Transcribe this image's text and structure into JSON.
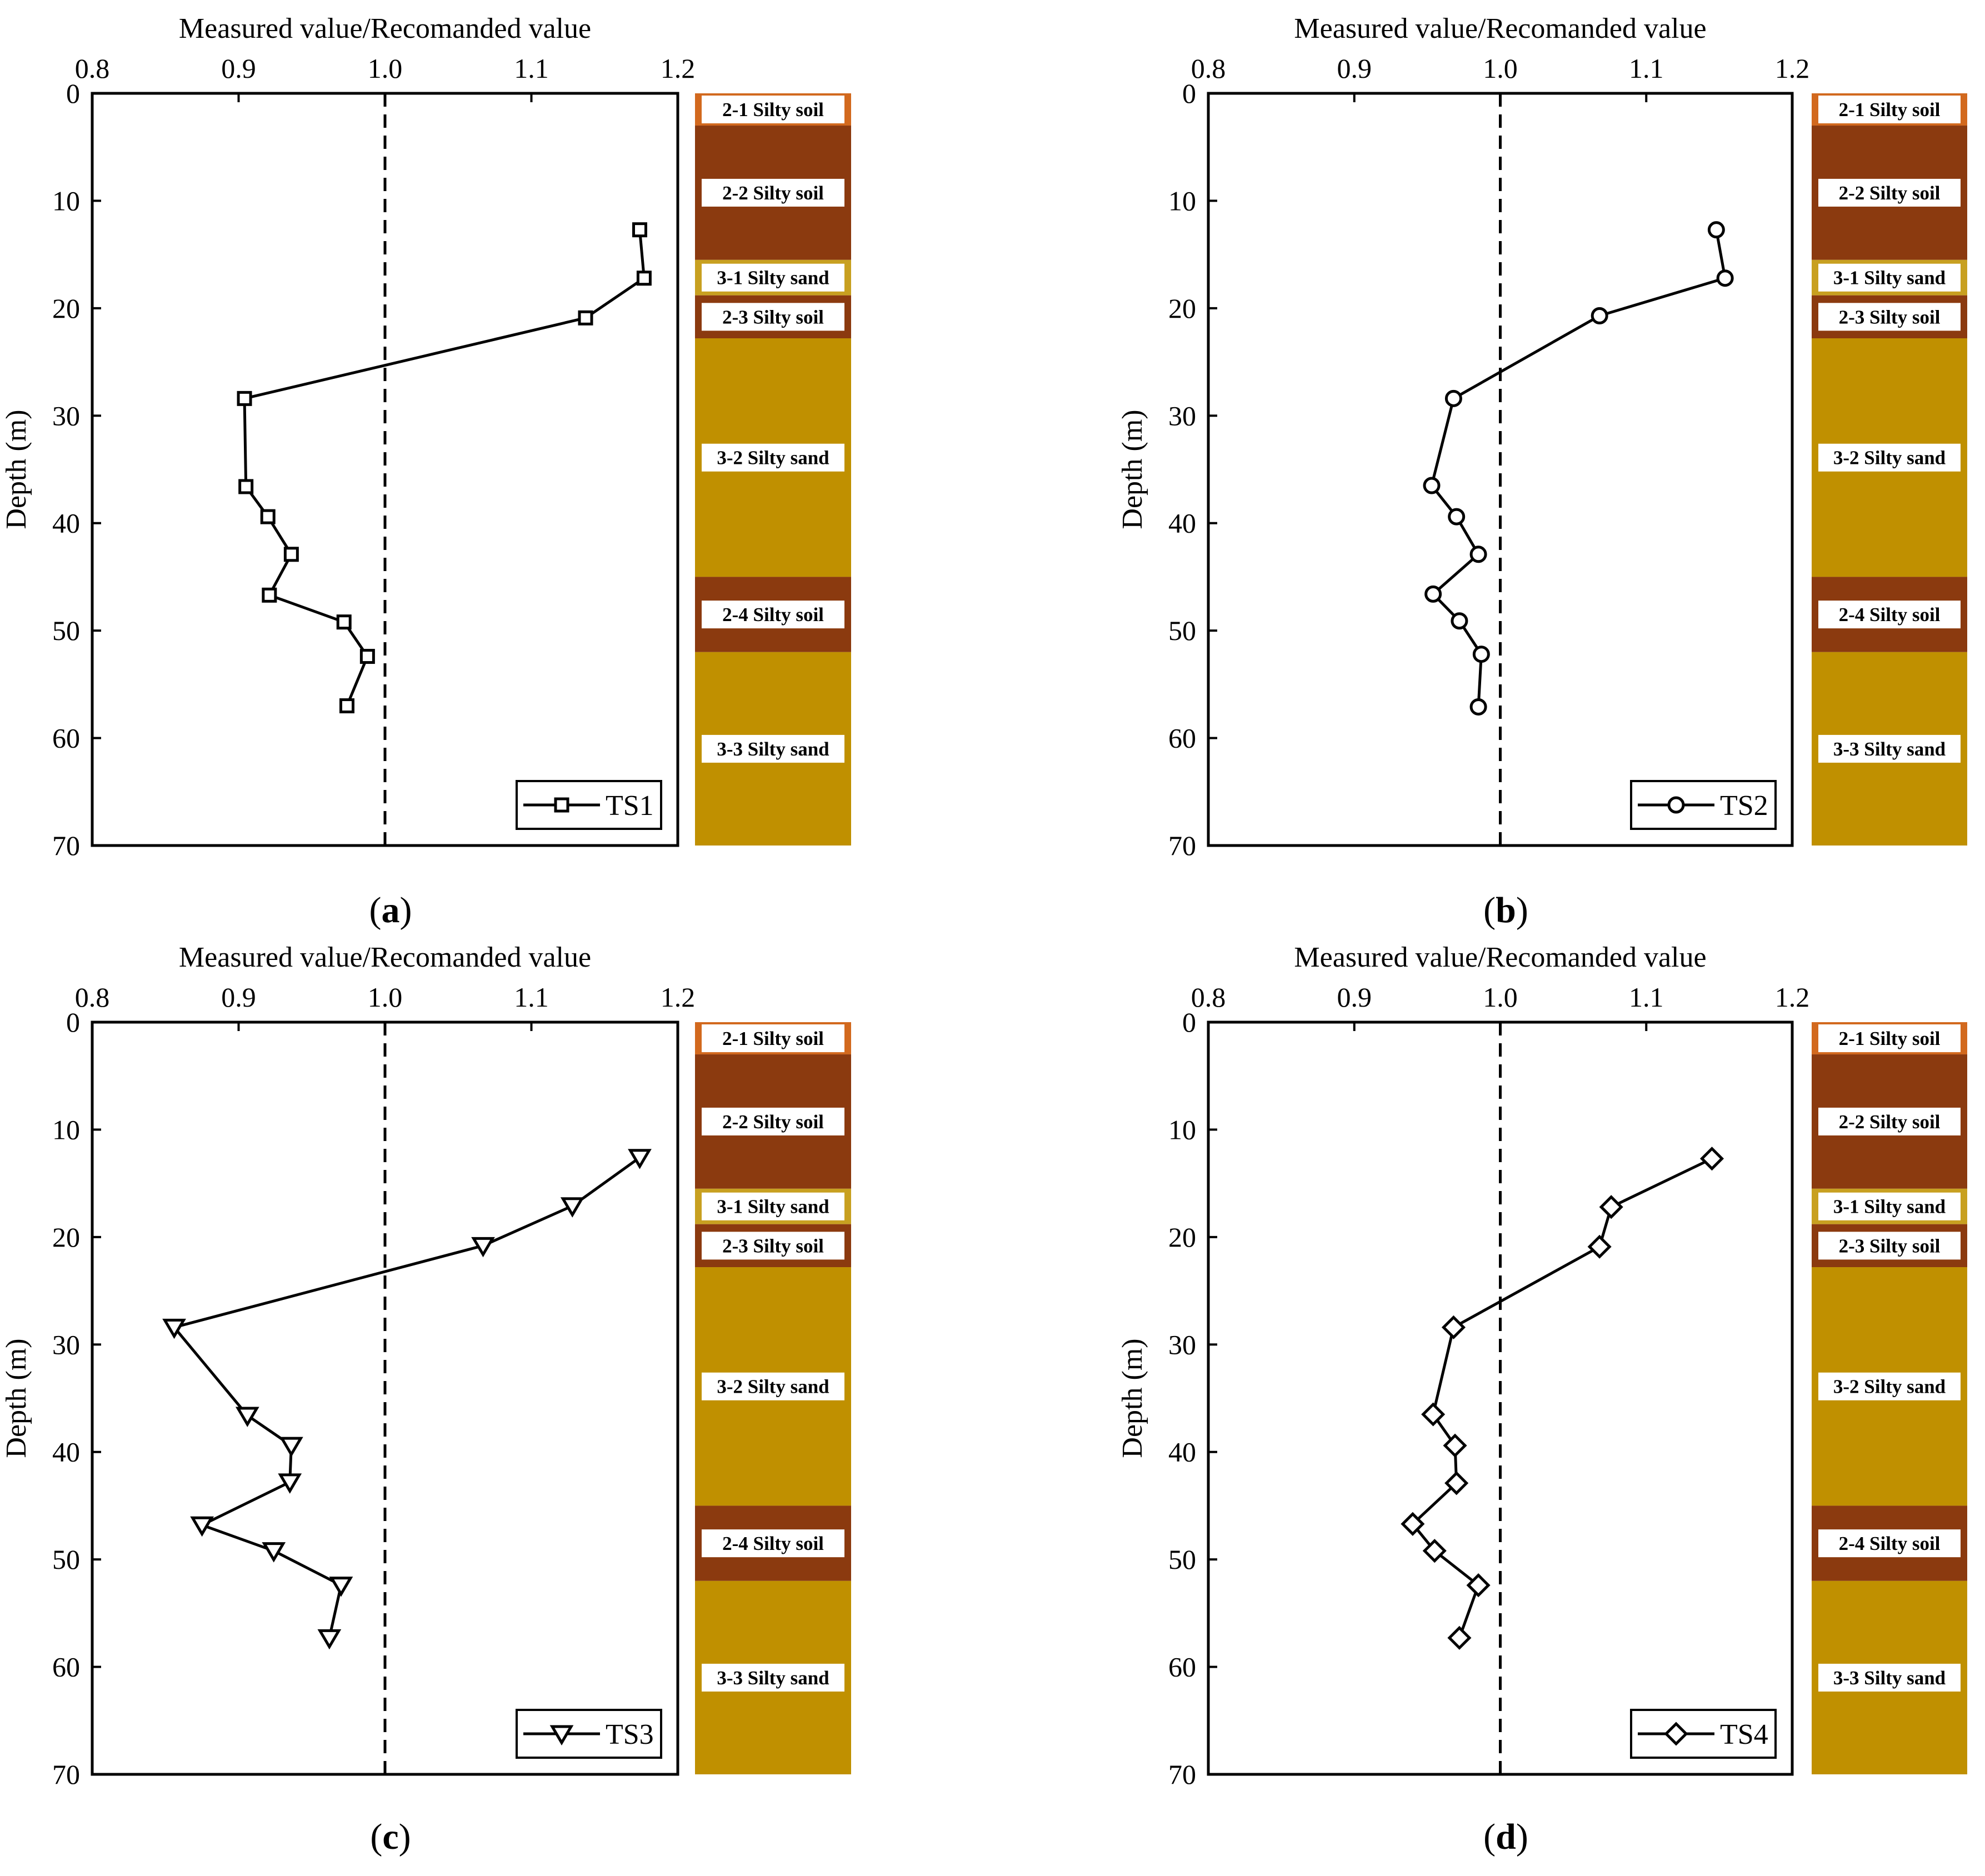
{
  "strata_colors": {
    "silty_soil_top": "#D2691E",
    "silty_soil": "#8B3A0F",
    "silty_sand": "#C09000",
    "silty_sand_thin": "#C8A020"
  },
  "shared": {
    "xlabel": "Measured value/Recomanded value",
    "ylabel": "Depth (m)",
    "xlim": [
      0.8,
      1.2
    ],
    "ylim": [
      0,
      70
    ],
    "xticks": [
      "0.8",
      "0.9",
      "1.0",
      "1.1",
      "1.2"
    ],
    "yticks": [
      "0",
      "10",
      "20",
      "30",
      "40",
      "50",
      "60",
      "70"
    ],
    "reference_line": 1.0
  },
  "chart_data": [
    {
      "type": "line",
      "panel_label_paren_open": "(",
      "panel_label": "a",
      "panel_label_paren_close": ")",
      "series_name": "TS1",
      "marker": "square",
      "x": [
        1.174,
        1.177,
        1.137,
        0.904,
        0.905,
        0.92,
        0.936,
        0.921,
        0.972,
        0.988,
        0.974
      ],
      "y": [
        12.7,
        17.2,
        20.9,
        28.4,
        36.6,
        39.4,
        42.9,
        46.7,
        49.2,
        52.4,
        57.0
      ],
      "strata": [
        {
          "label": "2-1 Silty soil",
          "top": 0,
          "bottom": 3,
          "color_key": "silty_soil_top"
        },
        {
          "label": "2-2 Silty soil",
          "top": 3,
          "bottom": 15.5,
          "color_key": "silty_soil"
        },
        {
          "label": "3-1 Silty sand",
          "top": 15.5,
          "bottom": 18.8,
          "color_key": "silty_sand_thin"
        },
        {
          "label": "2-3 Silty soil",
          "top": 18.8,
          "bottom": 22.8,
          "color_key": "silty_soil"
        },
        {
          "label": "3-2 Silty sand",
          "top": 22.8,
          "bottom": 45.0,
          "color_key": "silty_sand"
        },
        {
          "label": "2-4 Silty soil",
          "top": 45.0,
          "bottom": 52.0,
          "color_key": "silty_soil"
        },
        {
          "label": "3-3 Silty sand",
          "top": 52.0,
          "bottom": 70.0,
          "color_key": "silty_sand"
        }
      ]
    },
    {
      "type": "line",
      "panel_label_paren_open": "(",
      "panel_label": "b",
      "panel_label_paren_close": ")",
      "series_name": "TS2",
      "marker": "circle",
      "x": [
        1.148,
        1.154,
        1.068,
        0.968,
        0.953,
        0.97,
        0.985,
        0.954,
        0.972,
        0.987,
        0.985
      ],
      "y": [
        12.7,
        17.2,
        20.7,
        28.4,
        36.5,
        39.4,
        42.9,
        46.6,
        49.1,
        52.2,
        57.1
      ],
      "strata": [
        {
          "label": "2-1 Silty soil",
          "top": 0,
          "bottom": 3,
          "color_key": "silty_soil_top"
        },
        {
          "label": "2-2 Silty soil",
          "top": 3,
          "bottom": 15.5,
          "color_key": "silty_soil"
        },
        {
          "label": "3-1 Silty sand",
          "top": 15.5,
          "bottom": 18.8,
          "color_key": "silty_sand_thin"
        },
        {
          "label": "2-3 Silty soil",
          "top": 18.8,
          "bottom": 22.8,
          "color_key": "silty_soil"
        },
        {
          "label": "3-2 Silty sand",
          "top": 22.8,
          "bottom": 45.0,
          "color_key": "silty_sand"
        },
        {
          "label": "2-4 Silty soil",
          "top": 45.0,
          "bottom": 52.0,
          "color_key": "silty_soil"
        },
        {
          "label": "3-3 Silty sand",
          "top": 52.0,
          "bottom": 70.0,
          "color_key": "silty_sand"
        }
      ]
    },
    {
      "type": "line",
      "panel_label_paren_open": "(",
      "panel_label": "c",
      "panel_label_paren_close": ")",
      "series_name": "TS3",
      "marker": "triangle-down",
      "x": [
        1.174,
        1.128,
        1.067,
        0.856,
        0.906,
        0.936,
        0.935,
        0.875,
        0.924,
        0.97,
        0.962
      ],
      "y": [
        12.6,
        17.1,
        20.8,
        28.4,
        36.6,
        39.4,
        42.8,
        46.8,
        49.2,
        52.4,
        57.3
      ],
      "strata": [
        {
          "label": "2-1 Silty soil",
          "top": 0,
          "bottom": 3,
          "color_key": "silty_soil_top"
        },
        {
          "label": "2-2 Silty soil",
          "top": 3,
          "bottom": 15.5,
          "color_key": "silty_soil"
        },
        {
          "label": "3-1 Silty sand",
          "top": 15.5,
          "bottom": 18.8,
          "color_key": "silty_sand_thin"
        },
        {
          "label": "2-3 Silty soil",
          "top": 18.8,
          "bottom": 22.8,
          "color_key": "silty_soil"
        },
        {
          "label": "3-2 Silty sand",
          "top": 22.8,
          "bottom": 45.0,
          "color_key": "silty_sand"
        },
        {
          "label": "2-4 Silty soil",
          "top": 45.0,
          "bottom": 52.0,
          "color_key": "silty_soil"
        },
        {
          "label": "3-3 Silty sand",
          "top": 52.0,
          "bottom": 70.0,
          "color_key": "silty_sand"
        }
      ]
    },
    {
      "type": "line",
      "panel_label_paren_open": "(",
      "panel_label": "d",
      "panel_label_paren_close": ")",
      "series_name": "TS4",
      "marker": "diamond",
      "x": [
        1.145,
        1.076,
        1.068,
        0.968,
        0.954,
        0.969,
        0.97,
        0.94,
        0.955,
        0.985,
        0.972
      ],
      "y": [
        12.7,
        17.2,
        20.9,
        28.4,
        36.5,
        39.4,
        42.9,
        46.7,
        49.2,
        52.4,
        57.3
      ],
      "strata": [
        {
          "label": "2-1 Silty soil",
          "top": 0,
          "bottom": 3,
          "color_key": "silty_soil_top"
        },
        {
          "label": "2-2 Silty soil",
          "top": 3,
          "bottom": 15.5,
          "color_key": "silty_soil"
        },
        {
          "label": "3-1 Silty sand",
          "top": 15.5,
          "bottom": 18.8,
          "color_key": "silty_sand_thin"
        },
        {
          "label": "2-3 Silty soil",
          "top": 18.8,
          "bottom": 22.8,
          "color_key": "silty_soil"
        },
        {
          "label": "3-2 Silty sand",
          "top": 22.8,
          "bottom": 45.0,
          "color_key": "silty_sand"
        },
        {
          "label": "2-4 Silty soil",
          "top": 45.0,
          "bottom": 52.0,
          "color_key": "silty_soil"
        },
        {
          "label": "3-3 Silty sand",
          "top": 52.0,
          "bottom": 70.0,
          "color_key": "silty_sand"
        }
      ]
    }
  ]
}
